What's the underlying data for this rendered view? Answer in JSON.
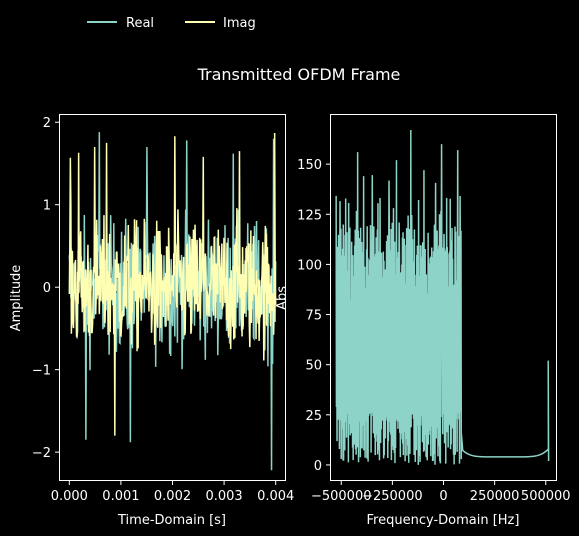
{
  "figure": {
    "title": "Transmitted OFDM Frame",
    "background": "#000000",
    "foreground": "#ffffff"
  },
  "legend": {
    "placement": "top-left",
    "items": [
      {
        "label": "Real",
        "color": "#8dd3c7"
      },
      {
        "label": "Imag",
        "color": "#ffffb3"
      }
    ]
  },
  "chart_data": [
    {
      "type": "line",
      "title": "",
      "xlabel": "Time-Domain [s]",
      "ylabel": "Amplitude",
      "xlim": [
        -0.0002,
        0.0042
      ],
      "ylim": [
        -2.35,
        2.1
      ],
      "xticks": [
        0.0,
        0.001,
        0.002,
        0.003,
        0.004
      ],
      "xtick_labels": [
        "0.000",
        "0.001",
        "0.002",
        "0.003",
        "0.004"
      ],
      "yticks": [
        -2,
        -1,
        0,
        1,
        2
      ],
      "ytick_labels": [
        "−2",
        "−1",
        "0",
        "1",
        "2"
      ],
      "grid": false,
      "x_range": [
        0.0,
        0.004
      ],
      "series": [
        {
          "name": "Real",
          "color": "#8dd3c7",
          "samples": 400,
          "typical_range": [
            -1.1,
            1.1
          ],
          "extremes": [
            {
              "x": 0.00032,
              "y": -1.85
            },
            {
              "x": 0.00058,
              "y": 1.88
            },
            {
              "x": 0.00118,
              "y": -1.88
            },
            {
              "x": 0.0015,
              "y": 1.7
            },
            {
              "x": 0.00228,
              "y": 1.78
            },
            {
              "x": 0.00318,
              "y": 1.62
            },
            {
              "x": 0.00392,
              "y": -2.22
            },
            {
              "x": 0.00396,
              "y": 1.8
            }
          ]
        },
        {
          "name": "Imag",
          "color": "#ffffb3",
          "samples": 400,
          "typical_range": [
            -1.1,
            1.1
          ],
          "extremes": [
            {
              "x": 2e-05,
              "y": 1.57
            },
            {
              "x": 0.00018,
              "y": 1.63
            },
            {
              "x": 0.00049,
              "y": 1.7
            },
            {
              "x": 0.00072,
              "y": 1.75
            },
            {
              "x": 0.00088,
              "y": -1.8
            },
            {
              "x": 0.00205,
              "y": 1.83
            },
            {
              "x": 0.0026,
              "y": 1.58
            },
            {
              "x": 0.0033,
              "y": 1.65
            },
            {
              "x": 0.00398,
              "y": 1.87
            }
          ]
        }
      ]
    },
    {
      "type": "line",
      "title": "",
      "xlabel": "Frequency-Domain [Hz]",
      "ylabel": "Abs",
      "xlim": [
        -555000,
        555000
      ],
      "ylim": [
        -8,
        175
      ],
      "xticks": [
        -500000,
        -250000,
        0,
        250000,
        500000
      ],
      "xtick_labels": [
        "−500000",
        "−250000",
        "0",
        "250000",
        "500000"
      ],
      "yticks": [
        0,
        25,
        50,
        75,
        100,
        125,
        150
      ],
      "ytick_labels": [
        "0",
        "25",
        "50",
        "75",
        "100",
        "125",
        "150"
      ],
      "grid": false,
      "series": [
        {
          "name": "",
          "color": "#8dd3c7",
          "occupied_band": [
            -525000,
            87000
          ],
          "occupied_level_range": [
            0,
            167
          ],
          "typical_occupied_level": 100,
          "peaks": [
            {
              "x": -160000,
              "y": 167
            },
            {
              "x": -10000,
              "y": 160
            },
            {
              "x": 70000,
              "y": 157
            },
            {
              "x": -420000,
              "y": 156
            },
            {
              "x": -230000,
              "y": 152
            },
            {
              "x": -95000,
              "y": 147
            },
            {
              "x": -390000,
              "y": 144
            }
          ],
          "guard_band": [
            87000,
            513000
          ],
          "guard_floor": 4,
          "edge_spike": {
            "x": 512000,
            "y": 52
          }
        }
      ]
    }
  ]
}
